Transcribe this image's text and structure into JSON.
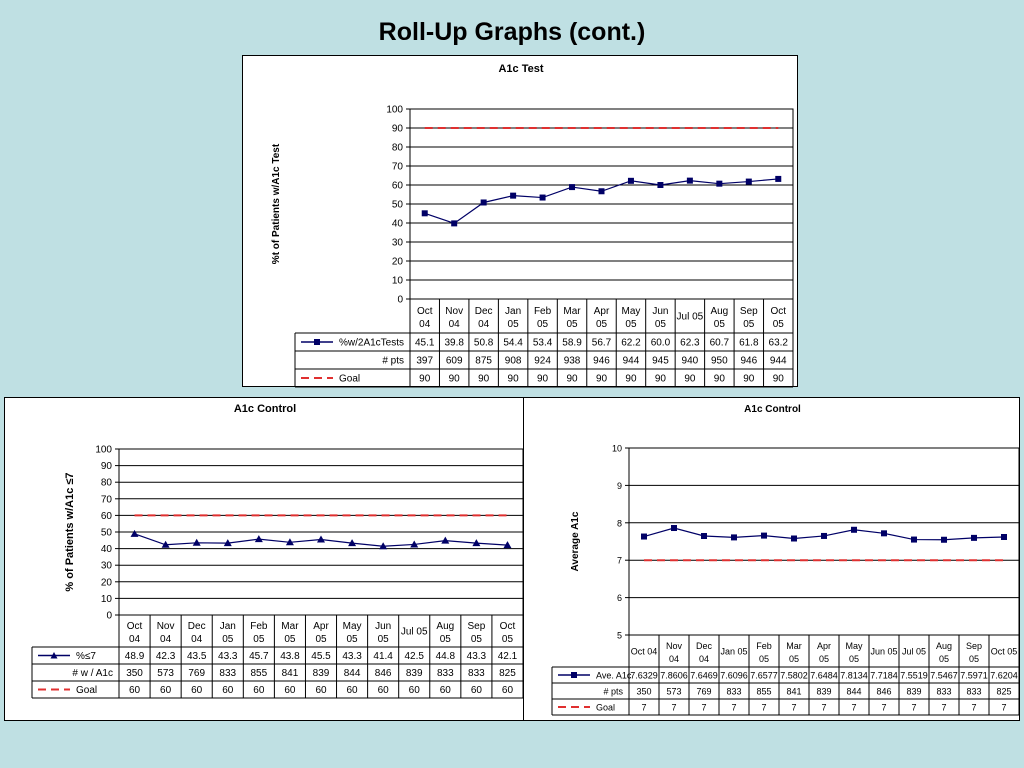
{
  "page": {
    "title": "Roll-Up Graphs (cont.)"
  },
  "colors": {
    "series": "#000066",
    "goal": "#e03030",
    "background": "#bfe0e3",
    "grid": "#000000"
  },
  "chart_data": [
    {
      "type": "line",
      "title": "A1c Test",
      "ylabel": "%t of Patients w/A1c Test",
      "xlabel": "",
      "ylim": [
        0,
        100
      ],
      "yticks": [
        0,
        10,
        20,
        30,
        40,
        50,
        60,
        70,
        80,
        90,
        100
      ],
      "categories": [
        [
          "Oct",
          "04"
        ],
        [
          "Nov",
          "04"
        ],
        [
          "Dec",
          "04"
        ],
        [
          "Jan",
          "05"
        ],
        [
          "Feb",
          "05"
        ],
        [
          "Mar",
          "05"
        ],
        [
          "Apr",
          "05"
        ],
        [
          "May",
          "05"
        ],
        [
          "Jun",
          "05"
        ],
        [
          "Jul 05"
        ],
        [
          "Aug",
          "05"
        ],
        [
          "Sep",
          "05"
        ],
        [
          "Oct",
          "05"
        ]
      ],
      "series": [
        {
          "name": "%w/2A1cTests",
          "values": [
            45.1,
            39.8,
            50.8,
            54.4,
            53.4,
            58.9,
            56.7,
            62.2,
            60.0,
            62.3,
            60.7,
            61.8,
            63.2
          ],
          "labels": [
            "45.1",
            "39.8",
            "50.8",
            "54.4",
            "53.4",
            "58.9",
            "56.7",
            "62.2",
            "60.0",
            "62.3",
            "60.7",
            "61.8",
            "63.2"
          ],
          "style": "line-marker",
          "marker": "square",
          "color": "#000066"
        },
        {
          "name": "Goal",
          "values": [
            90,
            90,
            90,
            90,
            90,
            90,
            90,
            90,
            90,
            90,
            90,
            90,
            90
          ],
          "labels": [
            "90",
            "90",
            "90",
            "90",
            "90",
            "90",
            "90",
            "90",
            "90",
            "90",
            "90",
            "90",
            "90"
          ],
          "style": "dashed",
          "color": "#e03030"
        }
      ],
      "table_rows": [
        {
          "name": "# pts",
          "labels": [
            "397",
            "609",
            "875",
            "908",
            "924",
            "938",
            "946",
            "944",
            "945",
            "940",
            "950",
            "946",
            "944"
          ]
        }
      ]
    },
    {
      "type": "line",
      "title": "A1c Control",
      "ylabel": "% of Patients w/A1c ≤7",
      "xlabel": "",
      "ylim": [
        0,
        100
      ],
      "yticks": [
        0,
        10,
        20,
        30,
        40,
        50,
        60,
        70,
        80,
        90,
        100
      ],
      "categories": [
        [
          "Oct",
          "04"
        ],
        [
          "Nov",
          "04"
        ],
        [
          "Dec",
          "04"
        ],
        [
          "Jan",
          "05"
        ],
        [
          "Feb",
          "05"
        ],
        [
          "Mar",
          "05"
        ],
        [
          "Apr",
          "05"
        ],
        [
          "May",
          "05"
        ],
        [
          "Jun",
          "05"
        ],
        [
          "Jul 05"
        ],
        [
          "Aug",
          "05"
        ],
        [
          "Sep",
          "05"
        ],
        [
          "Oct",
          "05"
        ]
      ],
      "series": [
        {
          "name": "%≤7",
          "values": [
            48.9,
            42.3,
            43.5,
            43.3,
            45.7,
            43.8,
            45.5,
            43.3,
            41.4,
            42.5,
            44.8,
            43.3,
            42.1
          ],
          "labels": [
            "48.9",
            "42.3",
            "43.5",
            "43.3",
            "45.7",
            "43.8",
            "45.5",
            "43.3",
            "41.4",
            "42.5",
            "44.8",
            "43.3",
            "42.1"
          ],
          "style": "line-marker",
          "marker": "triangle",
          "color": "#000066"
        },
        {
          "name": "Goal",
          "values": [
            60,
            60,
            60,
            60,
            60,
            60,
            60,
            60,
            60,
            60,
            60,
            60,
            60
          ],
          "labels": [
            "60",
            "60",
            "60",
            "60",
            "60",
            "60",
            "60",
            "60",
            "60",
            "60",
            "60",
            "60",
            "60"
          ],
          "style": "dashed",
          "color": "#e03030"
        }
      ],
      "table_rows": [
        {
          "name": "# w / A1c",
          "labels": [
            "350",
            "573",
            "769",
            "833",
            "855",
            "841",
            "839",
            "844",
            "846",
            "839",
            "833",
            "833",
            "825"
          ]
        }
      ]
    },
    {
      "type": "line",
      "title": "A1c Control",
      "ylabel": "Average A1c",
      "xlabel": "",
      "ylim": [
        5,
        10
      ],
      "yticks": [
        5,
        6,
        7,
        8,
        9,
        10
      ],
      "categories": [
        [
          "Oct 04"
        ],
        [
          "Nov",
          "04"
        ],
        [
          "Dec",
          "04"
        ],
        [
          "Jan 05"
        ],
        [
          "Feb",
          "05"
        ],
        [
          "Mar",
          "05"
        ],
        [
          "Apr",
          "05"
        ],
        [
          "May",
          "05"
        ],
        [
          "Jun 05"
        ],
        [
          "Jul 05"
        ],
        [
          "Aug",
          "05"
        ],
        [
          "Sep",
          "05"
        ],
        [
          "Oct 05"
        ]
      ],
      "series": [
        {
          "name": "Ave. A1c",
          "values": [
            7.6329,
            7.8606,
            7.6469,
            7.6096,
            7.6577,
            7.5802,
            7.6484,
            7.8134,
            7.7184,
            7.5519,
            7.5467,
            7.5971,
            7.6204
          ],
          "labels": [
            "7.6329",
            "7.8606",
            "7.6469",
            "7.6096",
            "7.6577",
            "7.5802",
            "7.6484",
            "7.8134",
            "7.7184",
            "7.5519",
            "7.5467",
            "7.5971",
            "7.6204"
          ],
          "style": "line-marker",
          "marker": "square",
          "color": "#000066"
        },
        {
          "name": "Goal",
          "values": [
            7,
            7,
            7,
            7,
            7,
            7,
            7,
            7,
            7,
            7,
            7,
            7,
            7
          ],
          "labels": [
            "7",
            "7",
            "7",
            "7",
            "7",
            "7",
            "7",
            "7",
            "7",
            "7",
            "7",
            "7",
            "7"
          ],
          "style": "dashed",
          "color": "#e03030"
        }
      ],
      "table_rows": [
        {
          "name": "# pts",
          "labels": [
            "350",
            "573",
            "769",
            "833",
            "855",
            "841",
            "839",
            "844",
            "846",
            "839",
            "833",
            "833",
            "825"
          ]
        }
      ]
    }
  ]
}
